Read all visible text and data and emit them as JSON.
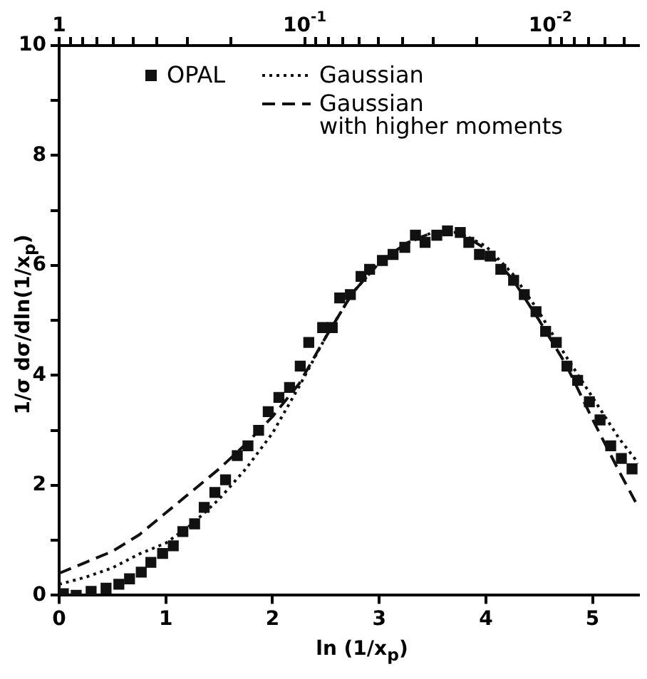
{
  "chart_data": {
    "type": "line",
    "xlabel": "ln (1/x$_{p}$)",
    "ylabel": "1/σ  dσ/dln(1/x$_{p}$)",
    "xlim": [
      0,
      5.43
    ],
    "xticks": [
      0,
      1,
      2,
      3,
      4,
      5
    ],
    "ylim": [
      0,
      10
    ],
    "yticks": [
      0,
      {
        "value": 1,
        "label": null
      },
      2,
      {
        "value": 3,
        "label": null
      },
      4,
      {
        "value": 5,
        "label": null
      },
      6,
      {
        "value": 7,
        "label": null
      },
      8,
      {
        "value": 9,
        "label": null
      },
      10
    ],
    "log": "x2",
    "x2lim": [
      1,
      0.00438
    ],
    "x2ticks": [
      1,
      {
        "value": 0.9,
        "label": null
      },
      {
        "value": 0.8,
        "label": null
      },
      {
        "value": 0.7,
        "label": null
      },
      {
        "value": 0.6,
        "label": null
      },
      {
        "value": 0.5,
        "label": null
      },
      {
        "value": 0.4,
        "label": null
      },
      {
        "value": 0.3,
        "label": null
      },
      {
        "value": 0.2,
        "label": null
      },
      {
        "value": 0.1,
        "label": "10$^{-1}$"
      },
      {
        "value": 0.09,
        "label": null
      },
      {
        "value": 0.08,
        "label": null
      },
      {
        "value": 0.07,
        "label": null
      },
      {
        "value": 0.06,
        "label": null
      },
      {
        "value": 0.05,
        "label": null
      },
      {
        "value": 0.04,
        "label": null
      },
      {
        "value": 0.03,
        "label": null
      },
      {
        "value": 0.02,
        "label": null
      },
      {
        "value": 0.01,
        "label": "10$^{-2}$"
      },
      {
        "value": 0.009,
        "label": null
      },
      {
        "value": 0.008,
        "label": null
      },
      {
        "value": 0.007,
        "label": null
      },
      {
        "value": 0.006,
        "label": null
      },
      {
        "value": 0.005,
        "label": null
      }
    ],
    "grid": false,
    "legend": "top",
    "series": [
      {
        "name": "OPAL",
        "type": "scatter",
        "marker": "square",
        "color": "#111111",
        "x": [
          0.04,
          0.16,
          0.3,
          0.44,
          0.56,
          0.66,
          0.77,
          0.86,
          0.97,
          1.07,
          1.16,
          1.27,
          1.36,
          1.46,
          1.56,
          1.67,
          1.77,
          1.87,
          1.96,
          2.06,
          2.16,
          2.26,
          2.34,
          2.47,
          2.56,
          2.63,
          2.73,
          2.83,
          2.91,
          3.03,
          3.13,
          3.24,
          3.34,
          3.43,
          3.54,
          3.64,
          3.76,
          3.84,
          3.94,
          4.04,
          4.14,
          4.26,
          4.36,
          4.47,
          4.56,
          4.66,
          4.76,
          4.86,
          4.97,
          5.07,
          5.17,
          5.27,
          5.37
        ],
        "values": [
          0.03,
          0,
          0.07,
          0.13,
          0.2,
          0.3,
          0.42,
          0.6,
          0.76,
          0.9,
          1.16,
          1.3,
          1.6,
          1.87,
          2.1,
          2.54,
          2.72,
          3.0,
          3.34,
          3.6,
          3.78,
          4.17,
          4.6,
          4.87,
          4.87,
          5.41,
          5.47,
          5.8,
          5.93,
          6.09,
          6.2,
          6.33,
          6.55,
          6.42,
          6.55,
          6.63,
          6.6,
          6.42,
          6.2,
          6.17,
          5.93,
          5.73,
          5.47,
          5.16,
          4.8,
          4.6,
          4.17,
          3.91,
          3.52,
          3.19,
          2.72,
          2.49,
          2.3
        ]
      },
      {
        "name": "Gaussian",
        "marker": "none",
        "line_style": "dotted",
        "color": "#111111",
        "x": [
          0,
          0.25,
          0.5,
          0.75,
          1,
          1.25,
          1.5,
          1.75,
          2,
          2.25,
          2.5,
          2.75,
          3,
          3.25,
          3.5,
          3.75,
          4,
          4.25,
          4.5,
          4.75,
          5,
          5.25,
          5.43
        ],
        "values": [
          0.2,
          0.33,
          0.5,
          0.75,
          0.95,
          1.3,
          1.75,
          2.3,
          2.95,
          3.8,
          4.7,
          5.5,
          6.05,
          6.4,
          6.6,
          6.6,
          6.35,
          5.85,
          5.15,
          4.35,
          3.6,
          2.85,
          2.4
        ]
      },
      {
        "name": "Gaussian with higher moments",
        "marker": "none",
        "line_style": "dashed",
        "color": "#111111",
        "x": [
          0,
          0.25,
          0.5,
          0.75,
          1,
          1.25,
          1.5,
          1.75,
          2,
          2.25,
          2.5,
          2.75,
          3,
          3.25,
          3.5,
          3.75,
          4,
          4.25,
          4.5,
          4.75,
          5,
          5.25,
          5.43
        ],
        "values": [
          0.4,
          0.6,
          0.8,
          1.1,
          1.5,
          1.9,
          2.3,
          2.75,
          3.25,
          3.85,
          4.7,
          5.5,
          6.05,
          6.4,
          6.6,
          6.6,
          6.3,
          5.75,
          5.0,
          4.2,
          3.2,
          2.25,
          1.6
        ]
      }
    ]
  }
}
